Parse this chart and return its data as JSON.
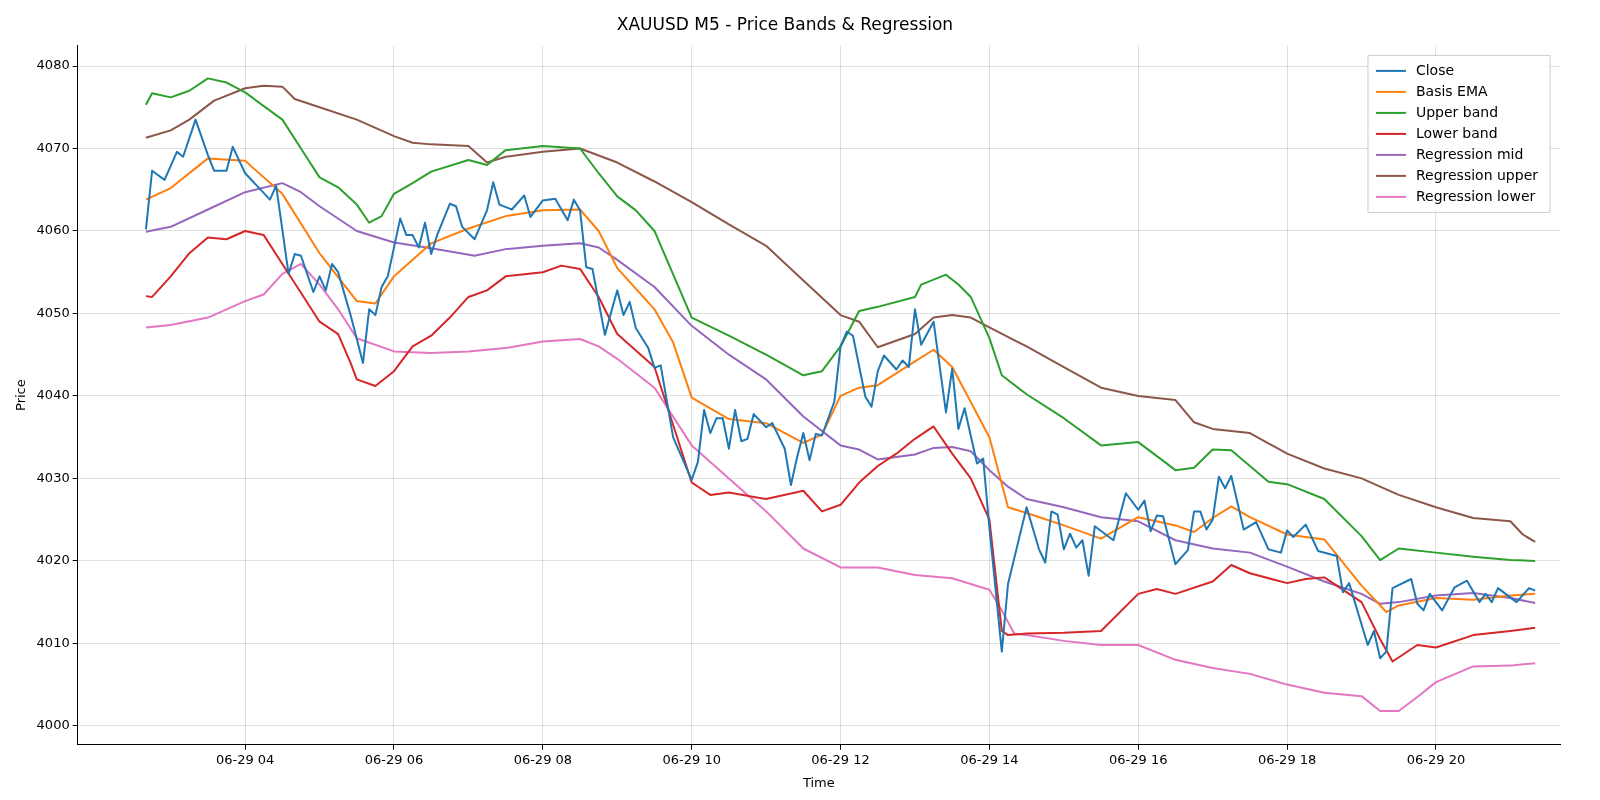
{
  "chart_data": {
    "type": "line",
    "title": "XAUUSD M5 - Price Bands & Regression",
    "xlabel": "Time",
    "ylabel": "Price",
    "xlim": [
      "--06-29T01:45",
      "--06-29T21:40"
    ],
    "ylim": [
      3997.7,
      4082.5
    ],
    "xticks": [
      {
        "value": "--06-29T04:00",
        "label": "06-29 04"
      },
      {
        "value": "--06-29T06:00",
        "label": "06-29 06"
      },
      {
        "value": "--06-29T08:00",
        "label": "06-29 08"
      },
      {
        "value": "--06-29T10:00",
        "label": "06-29 10"
      },
      {
        "value": "--06-29T12:00",
        "label": "06-29 12"
      },
      {
        "value": "--06-29T14:00",
        "label": "06-29 14"
      },
      {
        "value": "--06-29T16:00",
        "label": "06-29 16"
      },
      {
        "value": "--06-29T18:00",
        "label": "06-29 18"
      },
      {
        "value": "--06-29T20:00",
        "label": "06-29 20"
      }
    ],
    "yticks": [
      4000,
      4010,
      4020,
      4030,
      4040,
      4050,
      4060,
      4070,
      4080
    ],
    "grid": true,
    "legend": "top right",
    "series": [
      {
        "name": "Close",
        "color": "#1f77b4",
        "x": [
          "--06-29T02:40",
          "--06-29T02:45",
          "--06-29T02:55",
          "--06-29T03:05",
          "--06-29T03:10",
          "--06-29T03:20",
          "--06-29T03:30",
          "--06-29T03:35",
          "--06-29T03:45",
          "--06-29T03:50",
          "--06-29T04:00",
          "--06-29T04:20",
          "--06-29T04:25",
          "--06-29T04:35",
          "--06-29T04:40",
          "--06-29T04:45",
          "--06-29T04:55",
          "--06-29T05:00",
          "--06-29T05:05",
          "--06-29T05:10",
          "--06-29T05:15",
          "--06-29T05:25",
          "--06-29T05:35",
          "--06-29T05:40",
          "--06-29T05:45",
          "--06-29T05:50",
          "--06-29T05:55",
          "--06-29T06:05",
          "--06-29T06:10",
          "--06-29T06:15",
          "--06-29T06:20",
          "--06-29T06:25",
          "--06-29T06:30",
          "--06-29T06:35",
          "--06-29T06:45",
          "--06-29T06:50",
          "--06-29T06:55",
          "--06-29T07:05",
          "--06-29T07:15",
          "--06-29T07:20",
          "--06-29T07:25",
          "--06-29T07:35",
          "--06-29T07:45",
          "--06-29T07:50",
          "--06-29T08:00",
          "--06-29T08:10",
          "--06-29T08:20",
          "--06-29T08:25",
          "--06-29T08:30",
          "--06-29T08:35",
          "--06-29T08:40",
          "--06-29T08:50",
          "--06-29T09:00",
          "--06-29T09:05",
          "--06-29T09:10",
          "--06-29T09:15",
          "--06-29T09:25",
          "--06-29T09:30",
          "--06-29T09:35",
          "--06-29T09:45",
          "--06-29T10:00",
          "--06-29T10:05",
          "--06-29T10:10",
          "--06-29T10:15",
          "--06-29T10:20",
          "--06-29T10:25",
          "--06-29T10:30",
          "--06-29T10:35",
          "--06-29T10:40",
          "--06-29T10:45",
          "--06-29T10:50",
          "--06-29T11:00",
          "--06-29T11:05",
          "--06-29T11:15",
          "--06-29T11:20",
          "--06-29T11:25",
          "--06-29T11:30",
          "--06-29T11:35",
          "--06-29T11:40",
          "--06-29T11:45",
          "--06-29T11:55",
          "--06-29T12:00",
          "--06-29T12:05",
          "--06-29T12:10",
          "--06-29T12:20",
          "--06-29T12:25",
          "--06-29T12:30",
          "--06-29T12:35",
          "--06-29T12:45",
          "--06-29T12:50",
          "--06-29T12:55",
          "--06-29T13:00",
          "--06-29T13:05",
          "--06-29T13:15",
          "--06-29T13:25",
          "--06-29T13:30",
          "--06-29T13:35",
          "--06-29T13:40",
          "--06-29T13:50",
          "--06-29T13:55",
          "--06-29T14:00",
          "--06-29T14:10",
          "--06-29T14:15",
          "--06-29T14:20",
          "--06-29T14:30",
          "--06-29T14:40",
          "--06-29T14:45",
          "--06-29T14:50",
          "--06-29T14:55",
          "--06-29T15:00",
          "--06-29T15:05",
          "--06-29T15:10",
          "--06-29T15:15",
          "--06-29T15:20",
          "--06-29T15:25",
          "--06-29T15:40",
          "--06-29T15:50",
          "--06-29T16:00",
          "--06-29T16:05",
          "--06-29T16:10",
          "--06-29T16:15",
          "--06-29T16:20",
          "--06-29T16:30",
          "--06-29T16:40",
          "--06-29T16:45",
          "--06-29T16:50",
          "--06-29T16:55",
          "--06-29T17:00",
          "--06-29T17:05",
          "--06-29T17:10",
          "--06-29T17:15",
          "--06-29T17:25",
          "--06-29T17:35",
          "--06-29T17:45",
          "--06-29T17:55",
          "--06-29T18:00",
          "--06-29T18:05",
          "--06-29T18:15",
          "--06-29T18:25",
          "--06-29T18:40",
          "--06-29T18:45",
          "--06-29T18:50",
          "--06-29T19:05",
          "--06-29T19:10",
          "--06-29T19:15",
          "--06-29T19:20",
          "--06-29T19:25",
          "--06-29T19:40",
          "--06-29T19:45",
          "--06-29T19:50",
          "--06-29T19:55",
          "--06-29T20:05",
          "--06-29T20:15",
          "--06-29T20:25",
          "--06-29T20:35",
          "--06-29T20:40",
          "--06-29T20:45",
          "--06-29T20:50",
          "--06-29T21:05",
          "--06-29T21:15",
          "--06-29T21:20"
        ],
        "values": [
          4060.2,
          4067.3,
          4066.2,
          4069.6,
          4069.0,
          4073.5,
          4069.2,
          4067.3,
          4067.3,
          4070.2,
          4067.0,
          4063.8,
          4065.5,
          4054.8,
          4057.2,
          4057.0,
          4052.6,
          4054.5,
          4052.8,
          4056.0,
          4055.0,
          4049.8,
          4044.0,
          4050.5,
          4049.8,
          4053.2,
          4054.5,
          4061.5,
          4059.5,
          4059.5,
          4058.0,
          4061.0,
          4057.2,
          4059.6,
          4063.3,
          4063.0,
          4060.5,
          4059.0,
          4062.5,
          4065.9,
          4063.2,
          4062.6,
          4064.3,
          4061.7,
          4063.7,
          4063.9,
          4061.3,
          4063.8,
          4062.5,
          4055.6,
          4055.4,
          4047.4,
          4052.8,
          4049.8,
          4051.4,
          4048.2,
          4045.8,
          4043.4,
          4043.7,
          4035.0,
          4029.8,
          4032.0,
          4038.3,
          4035.5,
          4037.3,
          4037.3,
          4033.6,
          4038.3,
          4034.5,
          4034.8,
          4037.8,
          4036.2,
          4036.7,
          4033.6,
          4029.2,
          4032.6,
          4035.5,
          4032.2,
          4035.4,
          4035.2,
          4039.3,
          4046.0,
          4047.8,
          4047.3,
          4039.9,
          4038.7,
          4043.0,
          4044.9,
          4043.2,
          4044.3,
          4043.5,
          4050.5,
          4046.2,
          4049.0,
          4038.0,
          4043.3,
          4036.0,
          4038.5,
          4031.8,
          4032.4,
          4024.0,
          4009.0,
          4017.2,
          4020.3,
          4026.5,
          4021.4,
          4019.8,
          4026.0,
          4025.6,
          4021.4,
          4023.3,
          4021.6,
          4022.5,
          4018.2,
          4024.2,
          4022.5,
          4028.2,
          4026.2,
          4027.3,
          4023.6,
          4025.5,
          4025.4,
          4019.6,
          4021.3,
          4026.0,
          4026.0,
          4023.8,
          4025.0,
          4030.2,
          4028.8,
          4030.3,
          4023.8,
          4024.7,
          4021.4,
          4021.0,
          4023.7,
          4022.9,
          4024.4,
          4021.2,
          4020.6,
          4016.2,
          4017.3,
          4009.8,
          4011.5,
          4008.2,
          4009.0,
          4016.7,
          4017.8,
          4014.8,
          4014.0,
          4016.0,
          4014.0,
          4016.8,
          4017.6,
          4015.0,
          4016.0,
          4015.0,
          4016.7,
          4015.0,
          4016.7,
          4016.4
        ]
      },
      {
        "name": "Basis EMA",
        "color": "#ff7f0e",
        "x": [
          "--06-29T02:40",
          "--06-29T03:00",
          "--06-29T03:30",
          "--06-29T04:00",
          "--06-29T04:30",
          "--06-29T05:00",
          "--06-29T05:30",
          "--06-29T05:45",
          "--06-29T06:00",
          "--06-29T06:30",
          "--06-29T07:00",
          "--06-29T07:30",
          "--06-29T08:00",
          "--06-29T08:30",
          "--06-29T08:45",
          "--06-29T09:00",
          "--06-29T09:30",
          "--06-29T09:45",
          "--06-29T10:00",
          "--06-29T10:30",
          "--06-29T11:00",
          "--06-29T11:30",
          "--06-29T11:45",
          "--06-29T12:00",
          "--06-29T12:15",
          "--06-29T12:30",
          "--06-29T13:00",
          "--06-29T13:15",
          "--06-29T13:30",
          "--06-29T14:00",
          "--06-29T14:15",
          "--06-29T14:30",
          "--06-29T15:00",
          "--06-29T15:30",
          "--06-29T16:00",
          "--06-29T16:30",
          "--06-29T16:45",
          "--06-29T17:00",
          "--06-29T17:15",
          "--06-29T17:30",
          "--06-29T18:00",
          "--06-29T18:30",
          "--06-29T19:00",
          "--06-29T19:20",
          "--06-29T19:30",
          "--06-29T20:00",
          "--06-29T20:30",
          "--06-29T21:00",
          "--06-29T21:20"
        ],
        "values": [
          4063.8,
          4065.2,
          4068.8,
          4068.5,
          4064.5,
          4057.3,
          4051.5,
          4051.2,
          4054.5,
          4058.5,
          4060.3,
          4061.8,
          4062.5,
          4062.6,
          4060.0,
          4055.5,
          4050.5,
          4046.5,
          4039.8,
          4037.2,
          4036.7,
          4034.3,
          4035.3,
          4040.0,
          4041.0,
          4041.3,
          4044.2,
          4045.6,
          4043.5,
          4035.0,
          4026.5,
          4025.8,
          4024.3,
          4022.7,
          4025.3,
          4024.3,
          4023.5,
          4025.2,
          4026.6,
          4025.3,
          4023.2,
          4022.6,
          4017.0,
          4013.8,
          4014.6,
          4015.5,
          4015.3,
          4015.8,
          4016.0
        ]
      },
      {
        "name": "Upper band",
        "color": "#2ca02c",
        "x": [
          "--06-29T02:40",
          "--06-29T02:45",
          "--06-29T03:00",
          "--06-29T03:15",
          "--06-29T03:30",
          "--06-29T03:45",
          "--06-29T04:00",
          "--06-29T04:30",
          "--06-29T04:45",
          "--06-29T05:00",
          "--06-29T05:15",
          "--06-29T05:30",
          "--06-29T05:40",
          "--06-29T05:50",
          "--06-29T06:00",
          "--06-29T06:15",
          "--06-29T06:30",
          "--06-29T07:00",
          "--06-29T07:15",
          "--06-29T07:30",
          "--06-29T08:00",
          "--06-29T08:30",
          "--06-29T08:45",
          "--06-29T09:00",
          "--06-29T09:15",
          "--06-29T09:30",
          "--06-29T10:00",
          "--06-29T10:30",
          "--06-29T11:00",
          "--06-29T11:30",
          "--06-29T11:45",
          "--06-29T12:00",
          "--06-29T12:15",
          "--06-29T12:30",
          "--06-29T13:00",
          "--06-29T13:05",
          "--06-29T13:25",
          "--06-29T13:35",
          "--06-29T13:45",
          "--06-29T14:00",
          "--06-29T14:10",
          "--06-29T14:30",
          "--06-29T15:00",
          "--06-29T15:30",
          "--06-29T16:00",
          "--06-29T16:30",
          "--06-29T16:45",
          "--06-29T17:00",
          "--06-29T17:15",
          "--06-29T17:30",
          "--06-29T17:45",
          "--06-29T18:00",
          "--06-29T18:30",
          "--06-29T19:00",
          "--06-29T19:15",
          "--06-29T19:30",
          "--06-29T20:00",
          "--06-29T20:30",
          "--06-29T21:00",
          "--06-29T21:20"
        ],
        "values": [
          4075.3,
          4076.7,
          4076.2,
          4077.0,
          4078.5,
          4078.0,
          4076.8,
          4073.5,
          4070.0,
          4066.5,
          4065.3,
          4063.2,
          4061.0,
          4061.8,
          4064.5,
          4065.8,
          4067.2,
          4068.6,
          4068.0,
          4069.8,
          4070.3,
          4070.0,
          4067.0,
          4064.2,
          4062.5,
          4060.0,
          4049.5,
          4047.3,
          4045.0,
          4042.5,
          4043.0,
          4046.0,
          4050.3,
          4050.8,
          4052.0,
          4053.5,
          4054.7,
          4053.5,
          4052.0,
          4047.0,
          4042.5,
          4040.2,
          4037.3,
          4034.0,
          4034.4,
          4031.0,
          4031.3,
          4033.5,
          4033.4,
          4031.5,
          4029.6,
          4029.3,
          4027.5,
          4023.0,
          4020.1,
          4021.5,
          4021.0,
          4020.5,
          4020.1,
          4020.0
        ]
      },
      {
        "name": "Lower band",
        "color": "#d62728",
        "x": [
          "--06-29T02:40",
          "--06-29T02:45",
          "--06-29T03:00",
          "--06-29T03:15",
          "--06-29T03:30",
          "--06-29T03:45",
          "--06-29T04:00",
          "--06-29T04:15",
          "--06-29T04:30",
          "--06-29T04:45",
          "--06-29T05:00",
          "--06-29T05:15",
          "--06-29T05:25",
          "--06-29T05:30",
          "--06-29T05:45",
          "--06-29T06:00",
          "--06-29T06:15",
          "--06-29T06:30",
          "--06-29T06:45",
          "--06-29T07:00",
          "--06-29T07:15",
          "--06-29T07:30",
          "--06-29T08:00",
          "--06-29T08:15",
          "--06-29T08:30",
          "--06-29T08:45",
          "--06-29T09:00",
          "--06-29T09:30",
          "--06-29T10:00",
          "--06-29T10:15",
          "--06-29T10:30",
          "--06-29T11:00",
          "--06-29T11:30",
          "--06-29T11:45",
          "--06-29T12:00",
          "--06-29T12:15",
          "--06-29T12:30",
          "--06-29T12:45",
          "--06-29T13:00",
          "--06-29T13:15",
          "--06-29T13:30",
          "--06-29T13:45",
          "--06-29T14:00",
          "--06-29T14:10",
          "--06-29T14:15",
          "--06-29T14:30",
          "--06-29T15:00",
          "--06-29T15:30",
          "--06-29T16:00",
          "--06-29T16:15",
          "--06-29T16:30",
          "--06-29T17:00",
          "--06-29T17:15",
          "--06-29T17:30",
          "--06-29T18:00",
          "--06-29T18:15",
          "--06-29T18:30",
          "--06-29T19:00",
          "--06-29T19:15",
          "--06-29T19:25",
          "--06-29T19:45",
          "--06-29T20:00",
          "--06-29T20:30",
          "--06-29T21:00",
          "--06-29T21:20"
        ],
        "values": [
          4052.1,
          4052.0,
          4054.5,
          4057.3,
          4059.2,
          4059.0,
          4060.0,
          4059.5,
          4056.0,
          4052.5,
          4049.0,
          4047.5,
          4044.0,
          4042.0,
          4041.2,
          4043.0,
          4046.0,
          4047.3,
          4049.5,
          4052.0,
          4052.8,
          4054.5,
          4055.0,
          4055.8,
          4055.4,
          4052.0,
          4047.5,
          4043.5,
          4029.5,
          4028.0,
          4028.3,
          4027.5,
          4028.5,
          4026.0,
          4026.8,
          4029.5,
          4031.5,
          4033.0,
          4034.8,
          4036.3,
          4033.0,
          4030.0,
          4025.0,
          4011.5,
          4011.0,
          4011.2,
          4011.3,
          4011.5,
          4016.0,
          4016.6,
          4016.0,
          4017.5,
          4019.5,
          4018.5,
          4017.3,
          4017.8,
          4018.0,
          4015.0,
          4010.5,
          4007.8,
          4009.8,
          4009.5,
          4011.0,
          4011.5,
          4011.9
        ]
      },
      {
        "name": "Regression mid",
        "color": "#9467bd",
        "x": [
          "--06-29T02:40",
          "--06-29T03:00",
          "--06-29T03:30",
          "--06-29T04:00",
          "--06-29T04:30",
          "--06-29T04:45",
          "--06-29T05:00",
          "--06-29T05:30",
          "--06-29T06:00",
          "--06-29T06:30",
          "--06-29T07:05",
          "--06-29T07:30",
          "--06-29T08:00",
          "--06-29T08:30",
          "--06-29T08:45",
          "--06-29T09:00",
          "--06-29T09:30",
          "--06-29T10:00",
          "--06-29T10:30",
          "--06-29T11:00",
          "--06-29T11:30",
          "--06-29T12:00",
          "--06-29T12:15",
          "--06-29T12:30",
          "--06-29T13:00",
          "--06-29T13:15",
          "--06-29T13:30",
          "--06-29T13:45",
          "--06-29T14:00",
          "--06-29T14:15",
          "--06-29T14:30",
          "--06-29T15:00",
          "--06-29T15:30",
          "--06-29T16:00",
          "--06-29T16:30",
          "--06-29T17:00",
          "--06-29T17:30",
          "--06-29T18:00",
          "--06-29T18:30",
          "--06-29T19:00",
          "--06-29T19:15",
          "--06-29T19:30",
          "--06-29T20:00",
          "--06-29T20:30",
          "--06-29T21:00",
          "--06-29T21:20"
        ],
        "values": [
          4059.9,
          4060.5,
          4062.6,
          4064.7,
          4065.8,
          4064.7,
          4063.0,
          4060.0,
          4058.6,
          4057.9,
          4057.0,
          4057.8,
          4058.2,
          4058.5,
          4058.0,
          4056.5,
          4053.2,
          4048.5,
          4045.0,
          4042.0,
          4037.5,
          4034.0,
          4033.5,
          4032.3,
          4032.9,
          4033.7,
          4033.8,
          4033.3,
          4031.0,
          4029.0,
          4027.5,
          4026.5,
          4025.3,
          4024.8,
          4022.5,
          4021.5,
          4021.0,
          4019.3,
          4017.5,
          4016.0,
          4014.8,
          4015.0,
          4015.8,
          4016.1,
          4015.5,
          4014.9
        ]
      },
      {
        "name": "Regression upper",
        "color": "#8c564b",
        "x": [
          "--06-29T02:40",
          "--06-29T03:00",
          "--06-29T03:15",
          "--06-29T03:35",
          "--06-29T04:00",
          "--06-29T04:15",
          "--06-29T04:30",
          "--06-29T04:40",
          "--06-29T05:00",
          "--06-29T05:30",
          "--06-29T06:00",
          "--06-29T06:15",
          "--06-29T06:30",
          "--06-29T07:00",
          "--06-29T07:15",
          "--06-29T07:30",
          "--06-29T08:00",
          "--06-29T08:30",
          "--06-29T09:00",
          "--06-29T09:30",
          "--06-29T10:00",
          "--06-29T10:30",
          "--06-29T11:00",
          "--06-29T11:30",
          "--06-29T12:00",
          "--06-29T12:15",
          "--06-29T12:30",
          "--06-29T13:00",
          "--06-29T13:15",
          "--06-29T13:30",
          "--06-29T13:45",
          "--06-29T14:00",
          "--06-29T14:30",
          "--06-29T15:00",
          "--06-29T15:30",
          "--06-29T16:00",
          "--06-29T16:30",
          "--06-29T16:45",
          "--06-29T17:00",
          "--06-29T17:30",
          "--06-29T18:00",
          "--06-29T18:30",
          "--06-29T19:00",
          "--06-29T19:30",
          "--06-29T20:00",
          "--06-29T20:30",
          "--06-29T21:00",
          "--06-29T21:10",
          "--06-29T21:20"
        ],
        "values": [
          4071.3,
          4072.2,
          4073.5,
          4075.8,
          4077.3,
          4077.6,
          4077.5,
          4076.0,
          4075.0,
          4073.5,
          4071.5,
          4070.7,
          4070.5,
          4070.3,
          4068.3,
          4069.0,
          4069.6,
          4070.0,
          4068.3,
          4066.0,
          4063.5,
          4060.8,
          4058.2,
          4054.0,
          4049.8,
          4049.0,
          4045.9,
          4047.5,
          4049.5,
          4049.8,
          4049.5,
          4048.3,
          4046.0,
          4043.5,
          4041.0,
          4040.0,
          4039.5,
          4036.8,
          4036.0,
          4035.5,
          4033.0,
          4031.2,
          4030.0,
          4028.0,
          4026.5,
          4025.2,
          4024.8,
          4023.2,
          4022.3
        ]
      },
      {
        "name": "Regression lower",
        "color": "#e377c2",
        "x": [
          "--06-29T02:40",
          "--06-29T03:00",
          "--06-29T03:30",
          "--06-29T04:00",
          "--06-29T04:15",
          "--06-29T04:30",
          "--06-29T04:45",
          "--06-29T05:00",
          "--06-29T05:15",
          "--06-29T05:30",
          "--06-29T06:00",
          "--06-29T06:30",
          "--06-29T07:00",
          "--06-29T07:30",
          "--06-29T08:00",
          "--06-29T08:30",
          "--06-29T08:45",
          "--06-29T09:00",
          "--06-29T09:30",
          "--06-29T10:00",
          "--06-29T10:30",
          "--06-29T11:00",
          "--06-29T11:30",
          "--06-29T12:00",
          "--06-29T12:30",
          "--06-29T13:00",
          "--06-29T13:30",
          "--06-29T14:00",
          "--06-29T14:10",
          "--06-29T14:20",
          "--06-29T14:30",
          "--06-29T15:00",
          "--06-29T15:30",
          "--06-29T16:00",
          "--06-29T16:30",
          "--06-29T17:00",
          "--06-29T17:30",
          "--06-29T18:00",
          "--06-29T18:30",
          "--06-29T19:00",
          "--06-29T19:15",
          "--06-29T19:30",
          "--06-29T19:45",
          "--06-29T20:00",
          "--06-29T20:30",
          "--06-29T21:00",
          "--06-29T21:20"
        ],
        "values": [
          4048.3,
          4048.6,
          4049.5,
          4051.5,
          4052.3,
          4054.8,
          4056.0,
          4053.5,
          4050.5,
          4047.0,
          4045.4,
          4045.2,
          4045.4,
          4045.8,
          4046.6,
          4046.9,
          4046.0,
          4044.5,
          4041.0,
          4034.0,
          4030.0,
          4026.0,
          4021.5,
          4019.2,
          4019.2,
          4018.3,
          4017.9,
          4016.5,
          4014.0,
          4011.2,
          4011.0,
          4010.3,
          4009.8,
          4009.8,
          4008.0,
          4007.0,
          4006.3,
          4005.0,
          4004.0,
          4003.6,
          4001.8,
          4001.8,
          4003.5,
          4005.3,
          4007.2,
          4007.3,
          4007.6
        ]
      }
    ]
  }
}
